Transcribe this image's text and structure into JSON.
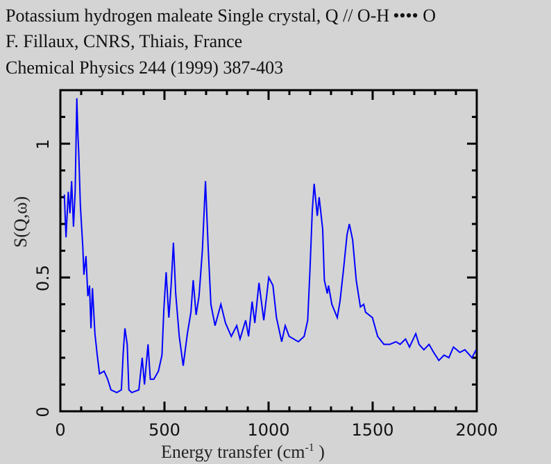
{
  "chart_data": {
    "type": "line",
    "title_lines": [
      "Potassium hydrogen maleate Single crystal, Q // O-H •••• O",
      "F. Fillaux, CNRS, Thiais, France",
      "Chemical Physics  244 (1999) 387-403"
    ],
    "xlabel": "Energy transfer (cm",
    "xlabel_sup": "-1",
    "xlabel_end": " )",
    "ylabel": "S(Q,ω)",
    "xlim": [
      0,
      2000
    ],
    "ylim": [
      0,
      1.2
    ],
    "x_ticks": [
      "0",
      "500",
      "1000",
      "1500",
      "2000"
    ],
    "y_ticks": [
      "0",
      "0.5",
      "1"
    ],
    "grid": false,
    "line_color": "#0000ff",
    "series": [
      {
        "name": "S(Q,w)",
        "x": [
          19,
          27,
          38,
          46,
          54,
          63,
          71,
          79,
          84,
          88,
          96,
          108,
          113,
          123,
          132,
          140,
          147,
          154,
          166,
          177,
          188,
          210,
          227,
          243,
          271,
          293,
          302,
          310,
          321,
          329,
          343,
          377,
          393,
          404,
          421,
          432,
          449,
          471,
          488,
          497,
          508,
          521,
          532,
          543,
          554,
          571,
          590,
          610,
          627,
          638,
          652,
          666,
          682,
          697,
          710,
          723,
          743,
          771,
          793,
          821,
          847,
          863,
          890,
          904,
          921,
          934,
          954,
          977,
          1001,
          1021,
          1038,
          1063,
          1080,
          1099,
          1143,
          1171,
          1188,
          1199,
          1210,
          1219,
          1234,
          1243,
          1260,
          1268,
          1282,
          1288,
          1304,
          1330,
          1343,
          1360,
          1377,
          1388,
          1404,
          1421,
          1441,
          1457,
          1466,
          1499,
          1524,
          1554,
          1582,
          1612,
          1632,
          1658,
          1677,
          1707,
          1723,
          1746,
          1771,
          1793,
          1818,
          1843,
          1866,
          1888,
          1919,
          1943,
          1977,
          1997
        ],
        "y": [
          0.81,
          0.65,
          0.82,
          0.74,
          0.86,
          0.69,
          0.82,
          1.17,
          1.04,
          0.97,
          0.77,
          0.61,
          0.51,
          0.58,
          0.43,
          0.47,
          0.31,
          0.46,
          0.29,
          0.21,
          0.14,
          0.15,
          0.12,
          0.08,
          0.07,
          0.08,
          0.22,
          0.31,
          0.25,
          0.08,
          0.07,
          0.08,
          0.2,
          0.1,
          0.25,
          0.12,
          0.12,
          0.15,
          0.21,
          0.38,
          0.52,
          0.35,
          0.47,
          0.63,
          0.44,
          0.28,
          0.17,
          0.29,
          0.37,
          0.49,
          0.36,
          0.43,
          0.6,
          0.86,
          0.61,
          0.4,
          0.32,
          0.4,
          0.33,
          0.28,
          0.32,
          0.27,
          0.34,
          0.28,
          0.41,
          0.33,
          0.48,
          0.34,
          0.5,
          0.47,
          0.35,
          0.26,
          0.32,
          0.28,
          0.26,
          0.28,
          0.34,
          0.53,
          0.75,
          0.85,
          0.73,
          0.8,
          0.68,
          0.49,
          0.44,
          0.47,
          0.4,
          0.35,
          0.41,
          0.53,
          0.66,
          0.7,
          0.64,
          0.49,
          0.39,
          0.4,
          0.37,
          0.35,
          0.28,
          0.25,
          0.25,
          0.26,
          0.25,
          0.27,
          0.24,
          0.29,
          0.25,
          0.23,
          0.25,
          0.22,
          0.19,
          0.21,
          0.2,
          0.24,
          0.22,
          0.23,
          0.2,
          0.23
        ]
      }
    ]
  }
}
